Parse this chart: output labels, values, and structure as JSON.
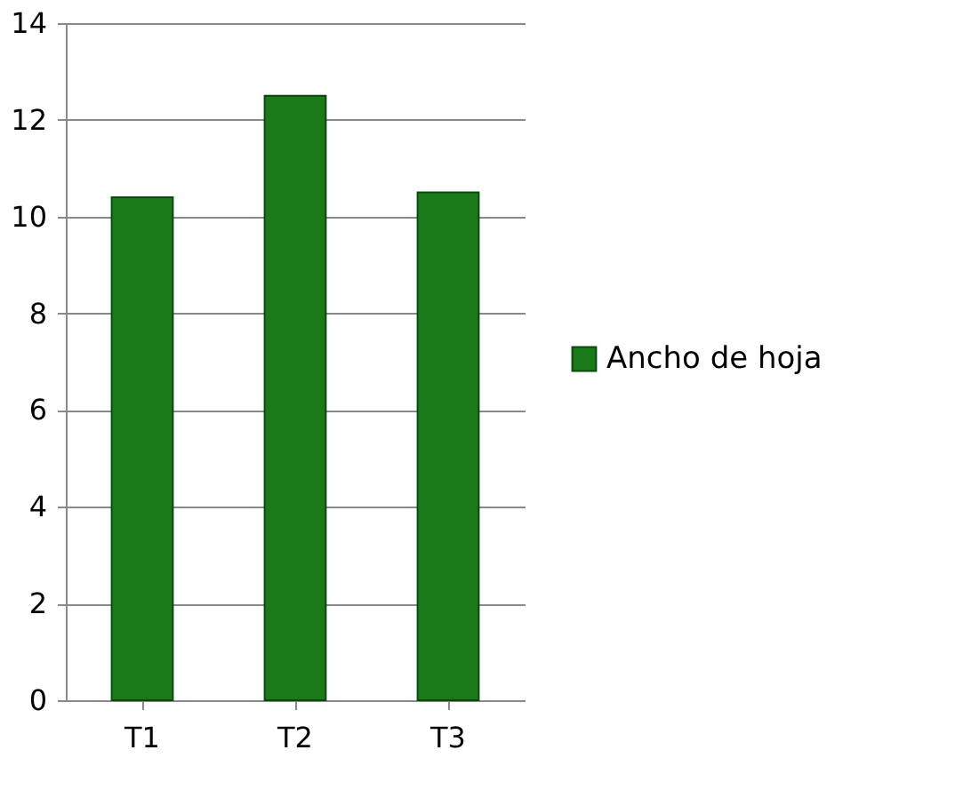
{
  "chart_data": {
    "type": "bar",
    "categories": [
      "T1",
      "T2",
      "T3"
    ],
    "series": [
      {
        "name": "Ancho de hoja",
        "color": "#1a7a1a",
        "values": [
          10.4,
          12.5,
          10.5
        ]
      }
    ],
    "ylim": [
      0,
      14
    ],
    "yticks": [
      0,
      2,
      4,
      6,
      8,
      10,
      12,
      14
    ],
    "grid": "y",
    "legend": "right"
  }
}
